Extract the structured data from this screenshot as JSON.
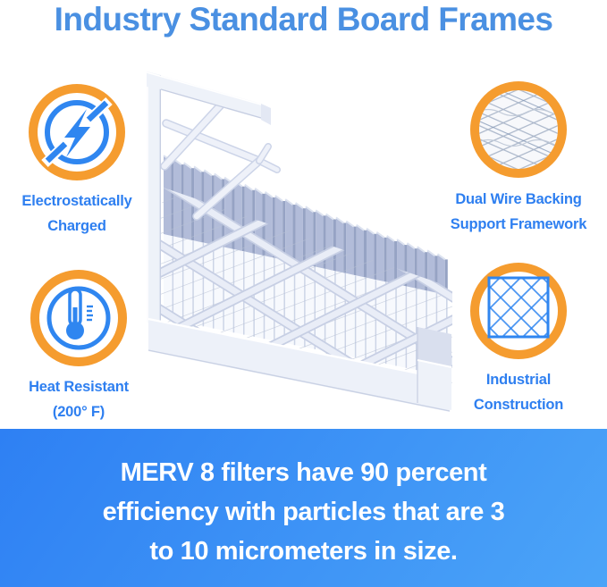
{
  "title": "Industry Standard Board Frames",
  "features": [
    {
      "name": "Electrostatically Charged",
      "label_line1": "Electrostatically",
      "label_line2": "Charged",
      "icon": "lightning-circle"
    },
    {
      "name": "Dual Wire Backing Support Framework",
      "label_line1": "Dual Wire Backing",
      "label_line2": "Support Framework",
      "icon": "wire-mesh"
    },
    {
      "name": "Heat Resistant (200° F)",
      "label_line1": "Heat Resistant",
      "label_line2": "(200° F)",
      "icon": "thermometer"
    },
    {
      "name": "Industrial Construction",
      "label_line1": "Industrial",
      "label_line2": "Construction",
      "icon": "diamond-lattice"
    }
  ],
  "banner": {
    "line1": "MERV 8 filters have 90 percent",
    "line2": "efficiency with particles that are 3",
    "line3": "to 10 micrometers in size."
  },
  "colors": {
    "title_blue": "#4a90e2",
    "label_blue": "#2e7ff0",
    "icon_blue": "#2f86f0",
    "accent_orange": "#f59c2f",
    "banner_gradient_start": "#2e80f3",
    "banner_gradient_end": "#4ba4f8",
    "banner_text": "#ffffff",
    "background": "#ffffff"
  }
}
